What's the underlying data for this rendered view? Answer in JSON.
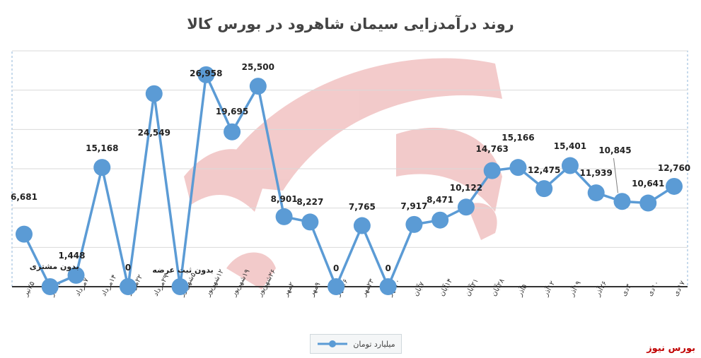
{
  "title": "روند درآمدزایی سیمان شاهرود در بورس کالا",
  "watermark": "بورس نیوز",
  "colors": {
    "line": "#5b9bd5",
    "grid": "#d9d9d9",
    "axis": "#000000",
    "text": "#222222",
    "deco": "#e9a0a0"
  },
  "chart_data": {
    "type": "line",
    "title": "روند درآمدزایی سیمان شاهرود در بورس کالا",
    "legend_position": "bottom",
    "categories": [
      "۲۵تیر",
      "۳۱تیر",
      "۷مرداد",
      "۱۴مرداد",
      "۲۲مرداد",
      "۲۹مرداد",
      "۵شهریور",
      "۱۲شهریور",
      "۱۹شهریور",
      "۲۶شهریور",
      "۲مهر",
      "۹مهر",
      "۱۶مهر",
      "۲۳مهر",
      "۳۰مهر",
      "۷آبان",
      "۱۴آبان",
      "۲۱آبان",
      "۲۸آبان",
      "۵آذر",
      "۱۲آذر",
      "۱۹آذر",
      "۲۶آذر",
      "۳دی",
      "۱۰دی",
      "۱۷دی"
    ],
    "ylim": [
      0,
      30000
    ],
    "series": [
      {
        "name": "میلیارد تومان",
        "values": [
          6681,
          0,
          1448,
          15168,
          0,
          24549,
          0,
          26958,
          19695,
          25500,
          8901,
          8227,
          0,
          7765,
          0,
          7917,
          8471,
          10122,
          14763,
          15166,
          12475,
          15401,
          11939,
          10845,
          10641,
          12760
        ]
      }
    ],
    "data_labels": [
      "6,681",
      "",
      "1,448",
      "15,168",
      "0",
      "24,549",
      "",
      "26,958",
      "19,695",
      "25,500",
      "8,901",
      "8,227",
      "0",
      "7,765",
      "0",
      "7,917",
      "8,471",
      "10,122",
      "14,763",
      "15,166",
      "",
      "15,401",
      "11,939",
      "10,845",
      "10,641",
      "12,760"
    ],
    "extra_labels": [
      {
        "index": 20,
        "text": "12,475"
      },
      {
        "index": 1,
        "text": "بدون مشتری"
      },
      {
        "index": 6,
        "text": "بدون ثبت عرضه"
      }
    ],
    "grid": true
  }
}
